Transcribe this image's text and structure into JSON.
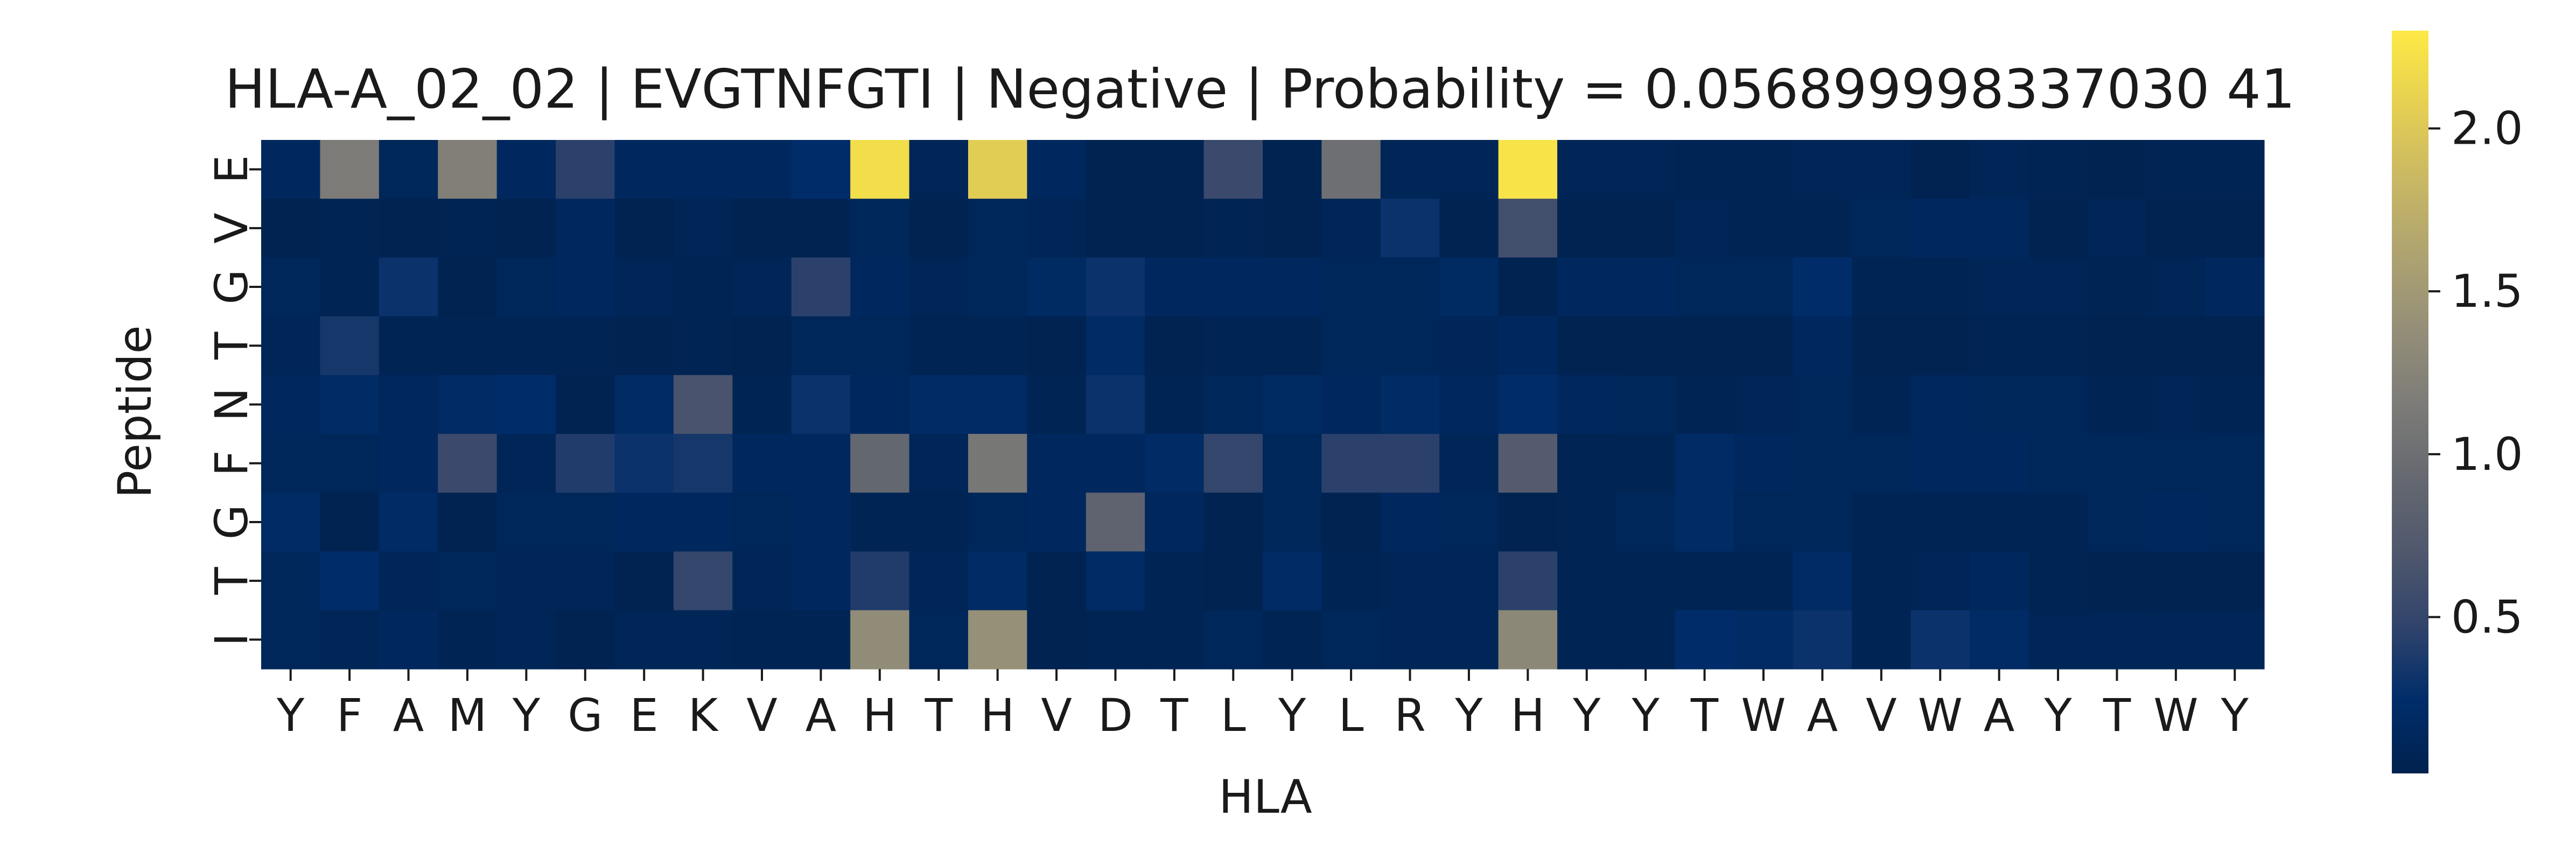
{
  "chart_data": {
    "type": "heatmap",
    "title": "HLA-A_02_02 | EVGTNFGTI | Negative | Probability = 0.056899998337030 41",
    "xlabel": "HLA",
    "ylabel": "Peptide",
    "x_categories": [
      "Y",
      "F",
      "A",
      "M",
      "Y",
      "G",
      "E",
      "K",
      "V",
      "A",
      "H",
      "T",
      "H",
      "V",
      "D",
      "T",
      "L",
      "Y",
      "L",
      "R",
      "Y",
      "H",
      "Y",
      "Y",
      "T",
      "W",
      "A",
      "V",
      "W",
      "A",
      "Y",
      "T",
      "W",
      "Y"
    ],
    "y_categories": [
      "E",
      "V",
      "G",
      "T",
      "N",
      "F",
      "G",
      "T",
      "I"
    ],
    "values": [
      [
        0.15,
        1.15,
        0.12,
        1.2,
        0.15,
        0.45,
        0.15,
        0.15,
        0.15,
        0.25,
        2.2,
        0.1,
        2.05,
        0.15,
        0.05,
        0.05,
        0.55,
        0.05,
        1.0,
        0.1,
        0.1,
        2.25,
        0.1,
        0.1,
        0.08,
        0.08,
        0.1,
        0.1,
        0.05,
        0.1,
        0.08,
        0.05,
        0.08,
        0.08
      ],
      [
        0.05,
        0.08,
        0.05,
        0.08,
        0.05,
        0.15,
        0.05,
        0.1,
        0.05,
        0.05,
        0.12,
        0.05,
        0.12,
        0.1,
        0.05,
        0.05,
        0.08,
        0.05,
        0.1,
        0.3,
        0.05,
        0.6,
        0.05,
        0.05,
        0.1,
        0.08,
        0.08,
        0.12,
        0.15,
        0.15,
        0.05,
        0.1,
        0.05,
        0.05
      ],
      [
        0.12,
        0.08,
        0.3,
        0.05,
        0.12,
        0.15,
        0.1,
        0.08,
        0.1,
        0.45,
        0.15,
        0.1,
        0.12,
        0.18,
        0.3,
        0.15,
        0.15,
        0.15,
        0.12,
        0.12,
        0.18,
        0.05,
        0.15,
        0.15,
        0.12,
        0.12,
        0.25,
        0.08,
        0.08,
        0.1,
        0.1,
        0.08,
        0.1,
        0.15
      ],
      [
        0.1,
        0.35,
        0.08,
        0.08,
        0.08,
        0.08,
        0.05,
        0.08,
        0.05,
        0.12,
        0.12,
        0.08,
        0.08,
        0.05,
        0.2,
        0.05,
        0.08,
        0.08,
        0.12,
        0.12,
        0.1,
        0.15,
        0.05,
        0.05,
        0.05,
        0.05,
        0.15,
        0.05,
        0.05,
        0.08,
        0.08,
        0.05,
        0.05,
        0.05
      ],
      [
        0.15,
        0.2,
        0.15,
        0.2,
        0.25,
        0.05,
        0.2,
        0.65,
        0.08,
        0.3,
        0.15,
        0.2,
        0.2,
        0.08,
        0.3,
        0.08,
        0.12,
        0.18,
        0.15,
        0.2,
        0.15,
        0.25,
        0.15,
        0.12,
        0.08,
        0.1,
        0.12,
        0.08,
        0.15,
        0.12,
        0.12,
        0.08,
        0.1,
        0.08
      ],
      [
        0.12,
        0.12,
        0.15,
        0.55,
        0.1,
        0.4,
        0.3,
        0.35,
        0.15,
        0.15,
        0.9,
        0.1,
        1.1,
        0.15,
        0.15,
        0.2,
        0.5,
        0.12,
        0.45,
        0.45,
        0.1,
        0.75,
        0.08,
        0.08,
        0.2,
        0.15,
        0.12,
        0.12,
        0.15,
        0.15,
        0.12,
        0.12,
        0.12,
        0.12
      ],
      [
        0.2,
        0.05,
        0.2,
        0.05,
        0.12,
        0.12,
        0.15,
        0.15,
        0.12,
        0.15,
        0.08,
        0.08,
        0.12,
        0.15,
        0.85,
        0.15,
        0.05,
        0.12,
        0.05,
        0.15,
        0.12,
        0.05,
        0.08,
        0.12,
        0.2,
        0.12,
        0.12,
        0.08,
        0.08,
        0.08,
        0.08,
        0.12,
        0.15,
        0.12
      ],
      [
        0.12,
        0.25,
        0.1,
        0.12,
        0.1,
        0.1,
        0.05,
        0.5,
        0.1,
        0.15,
        0.4,
        0.1,
        0.2,
        0.05,
        0.2,
        0.08,
        0.05,
        0.2,
        0.08,
        0.1,
        0.1,
        0.45,
        0.08,
        0.08,
        0.08,
        0.08,
        0.2,
        0.08,
        0.1,
        0.15,
        0.08,
        0.05,
        0.05,
        0.05
      ],
      [
        0.12,
        0.1,
        0.15,
        0.08,
        0.1,
        0.05,
        0.1,
        0.1,
        0.08,
        0.08,
        1.35,
        0.12,
        1.4,
        0.05,
        0.08,
        0.08,
        0.12,
        0.08,
        0.12,
        0.1,
        0.1,
        1.3,
        0.08,
        0.08,
        0.25,
        0.2,
        0.3,
        0.08,
        0.3,
        0.2,
        0.1,
        0.1,
        0.1,
        0.1
      ]
    ],
    "colorbar": {
      "colormap": "cividis",
      "min": 0.02,
      "max": 2.3,
      "ticks": [
        "0.5",
        "1.0",
        "1.5",
        "2.0"
      ]
    }
  }
}
